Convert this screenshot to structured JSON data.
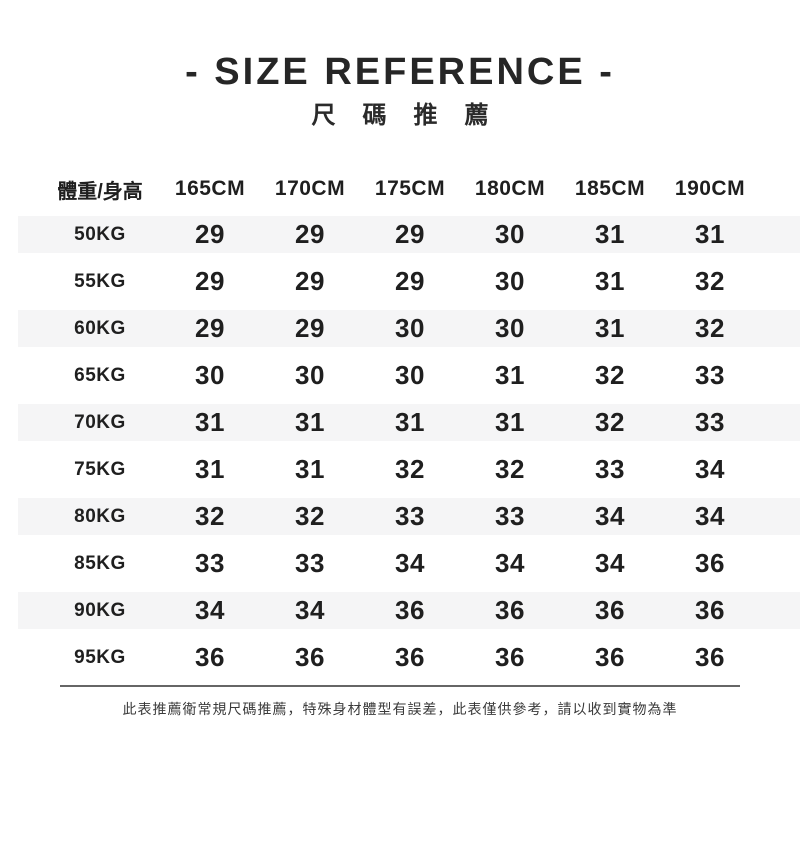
{
  "chart_data": {
    "type": "table",
    "title": "- SIZE REFERENCE -",
    "subtitle": "尺碼推薦",
    "columns": [
      "體重/身高",
      "165CM",
      "170CM",
      "175CM",
      "180CM",
      "185CM",
      "190CM"
    ],
    "rows": [
      {
        "label": "50KG",
        "values": [
          "29",
          "29",
          "29",
          "30",
          "31",
          "31"
        ]
      },
      {
        "label": "55KG",
        "values": [
          "29",
          "29",
          "29",
          "30",
          "31",
          "32"
        ]
      },
      {
        "label": "60KG",
        "values": [
          "29",
          "29",
          "30",
          "30",
          "31",
          "32"
        ]
      },
      {
        "label": "65KG",
        "values": [
          "30",
          "30",
          "30",
          "31",
          "32",
          "33"
        ]
      },
      {
        "label": "70KG",
        "values": [
          "31",
          "31",
          "31",
          "31",
          "32",
          "33"
        ]
      },
      {
        "label": "75KG",
        "values": [
          "31",
          "31",
          "32",
          "32",
          "33",
          "34"
        ]
      },
      {
        "label": "80KG",
        "values": [
          "32",
          "32",
          "33",
          "33",
          "34",
          "34"
        ]
      },
      {
        "label": "85KG",
        "values": [
          "33",
          "33",
          "34",
          "34",
          "34",
          "36"
        ]
      },
      {
        "label": "90KG",
        "values": [
          "34",
          "34",
          "36",
          "36",
          "36",
          "36"
        ]
      },
      {
        "label": "95KG",
        "values": [
          "36",
          "36",
          "36",
          "36",
          "36",
          "36"
        ]
      }
    ],
    "footnote": "此表推薦衛常規尺碼推薦，特殊身材體型有誤差，此表僅供參考，請以收到實物為準",
    "layout_hints": {
      "stripe_rows": "odd rows shaded",
      "stripe_color": "#f5f5f6",
      "text_color": "#1f1f1f",
      "divider_color": "#666666"
    }
  }
}
